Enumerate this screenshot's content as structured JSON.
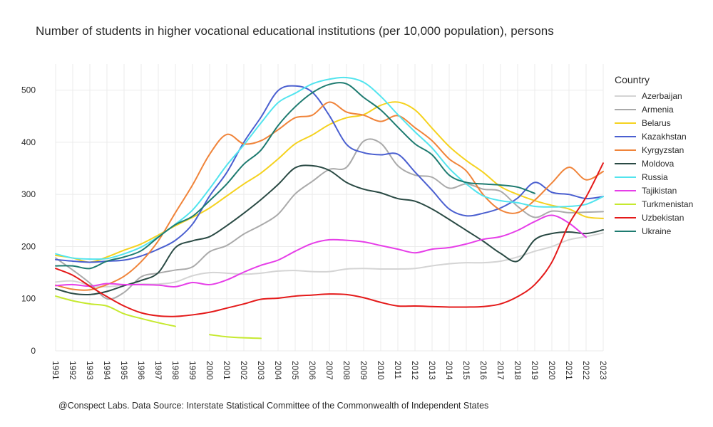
{
  "title": "Number of students in higher vocational educational institutions (per 10,000 population), persons",
  "footer": "@Conspect Labs. Data Source: Interstate Statistical Committee of the Commonwealth of Independent States",
  "legend_title": "Country",
  "chart_data": {
    "type": "line",
    "title": "Number of students in higher vocational educational institutions (per 10,000 population), persons",
    "xlabel": "",
    "ylabel": "",
    "x": [
      1991,
      1992,
      1993,
      1994,
      1995,
      1996,
      1997,
      1998,
      1999,
      2000,
      2001,
      2002,
      2003,
      2004,
      2005,
      2006,
      2007,
      2008,
      2009,
      2010,
      2011,
      2012,
      2013,
      2014,
      2015,
      2016,
      2017,
      2018,
      2019,
      2020,
      2021,
      2022,
      2023
    ],
    "x_ticks": [
      "1991",
      "1992",
      "1993",
      "1994",
      "1995",
      "1996",
      "1997",
      "1998",
      "1999",
      "2000",
      "2001",
      "2002",
      "2003",
      "2004",
      "2005",
      "2006",
      "2007",
      "2008",
      "2009",
      "2010",
      "2011",
      "2012",
      "2013",
      "2014",
      "2015",
      "2016",
      "2017",
      "2018",
      "2019",
      "2020",
      "2021",
      "2022",
      "2023"
    ],
    "y_ticks": [
      0,
      100,
      200,
      300,
      400,
      500
    ],
    "ylim": [
      0,
      550
    ],
    "grid": true,
    "legend_position": "right",
    "series": [
      {
        "name": "Azerbaijan",
        "color": "#d4d4d4",
        "values": [
          132,
          134,
          126,
          123,
          126,
          128,
          128,
          132,
          144,
          150,
          149,
          147,
          149,
          153,
          154,
          152,
          152,
          157,
          158,
          157,
          157,
          158,
          163,
          167,
          169,
          169,
          172,
          180,
          191,
          200,
          213,
          219,
          226
        ]
      },
      {
        "name": "Armenia",
        "color": "#aaaaaa",
        "values": [
          178,
          155,
          130,
          100,
          112,
          142,
          149,
          155,
          161,
          190,
          202,
          224,
          241,
          262,
          301,
          325,
          348,
          352,
          402,
          398,
          355,
          337,
          333,
          312,
          320,
          310,
          306,
          277,
          256,
          268,
          265,
          266,
          267
        ]
      },
      {
        "name": "Belarus",
        "color": "#f5d21f",
        "values": [
          183,
          178,
          170,
          180,
          193,
          205,
          222,
          240,
          256,
          274,
          297,
          320,
          341,
          368,
          397,
          414,
          434,
          447,
          453,
          471,
          477,
          462,
          427,
          392,
          365,
          342,
          315,
          300,
          288,
          279,
          272,
          257,
          254
        ]
      },
      {
        "name": "Kazakhstan",
        "color": "#4a5fd0",
        "values": [
          175,
          172,
          170,
          172,
          174,
          182,
          195,
          212,
          243,
          297,
          342,
          400,
          448,
          499,
          508,
          496,
          451,
          396,
          380,
          376,
          377,
          343,
          308,
          272,
          259,
          264,
          274,
          293,
          323,
          304,
          300,
          292,
          296
        ]
      },
      {
        "name": "Kyrgyzstan",
        "color": "#f0843a",
        "values": [
          126,
          118,
          117,
          127,
          143,
          171,
          211,
          265,
          318,
          377,
          415,
          397,
          403,
          424,
          447,
          452,
          477,
          458,
          452,
          440,
          451,
          428,
          403,
          368,
          345,
          299,
          270,
          265,
          289,
          322,
          352,
          328,
          344
        ]
      },
      {
        "name": "Moldova",
        "color": "#2a4a44",
        "values": [
          119,
          110,
          108,
          114,
          125,
          135,
          150,
          198,
          211,
          219,
          240,
          264,
          290,
          319,
          351,
          355,
          346,
          323,
          310,
          303,
          292,
          287,
          272,
          252,
          231,
          210,
          187,
          172,
          213,
          225,
          228,
          225,
          232
        ]
      },
      {
        "name": "Russia",
        "color": "#52e4ee",
        "values": [
          186,
          178,
          176,
          177,
          186,
          199,
          219,
          243,
          270,
          311,
          356,
          395,
          437,
          476,
          494,
          512,
          521,
          524,
          515,
          488,
          453,
          420,
          389,
          350,
          320,
          297,
          288,
          284,
          277,
          276,
          277,
          281,
          296
        ]
      },
      {
        "name": "Tajikistan",
        "color": "#e63ee8",
        "values": [
          125,
          127,
          124,
          129,
          127,
          127,
          126,
          123,
          131,
          127,
          136,
          151,
          164,
          174,
          191,
          206,
          213,
          212,
          209,
          202,
          195,
          188,
          195,
          198,
          205,
          214,
          219,
          231,
          248,
          260,
          245,
          218,
          null
        ]
      },
      {
        "name": "Turkmenistan",
        "color": "#c6e92f",
        "values": [
          105,
          96,
          90,
          86,
          71,
          62,
          54,
          47,
          null,
          31,
          27,
          25,
          24,
          null,
          null,
          null,
          null,
          null,
          null,
          null,
          null,
          null,
          null,
          null,
          null,
          null,
          null,
          null,
          null,
          null,
          null,
          null,
          null
        ]
      },
      {
        "name": "Uzbekistan",
        "color": "#e41a1a",
        "values": [
          158,
          145,
          124,
          104,
          86,
          73,
          67,
          66,
          69,
          74,
          82,
          90,
          99,
          101,
          105,
          107,
          109,
          108,
          102,
          93,
          86,
          86,
          85,
          84,
          84,
          85,
          90,
          104,
          127,
          170,
          243,
          295,
          360
        ]
      },
      {
        "name": "Ukraine",
        "color": "#1e7b70",
        "values": [
          163,
          163,
          158,
          172,
          180,
          192,
          218,
          242,
          258,
          288,
          320,
          358,
          385,
          432,
          468,
          495,
          511,
          512,
          486,
          462,
          429,
          397,
          376,
          337,
          323,
          320,
          318,
          314,
          302,
          null,
          null,
          null,
          null
        ]
      }
    ]
  }
}
